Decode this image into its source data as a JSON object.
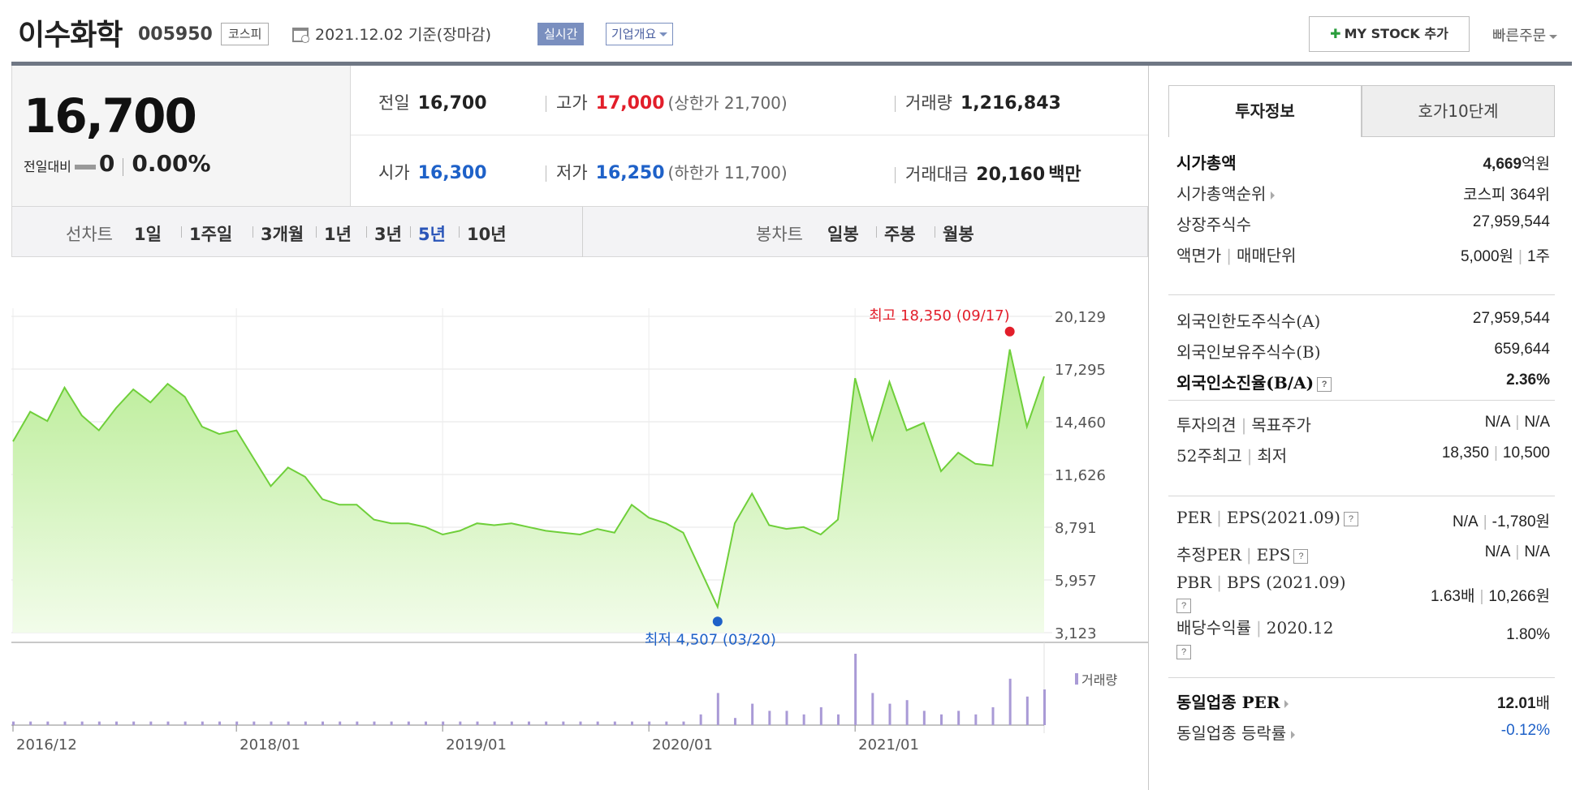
{
  "header": {
    "stock_name": "이수화학",
    "stock_code": "005950",
    "market": "코스피",
    "date_text": "2021.12.02  기준(장마감)",
    "realtime_label": "실시간",
    "company_overview_label": "기업개요",
    "mystock_label": "MY STOCK 추가",
    "quick_order_label": "빠른주문"
  },
  "price": {
    "current": "16,700",
    "change_label": "전일대비",
    "change_value": "0",
    "change_pct": "0.00%"
  },
  "quote": {
    "prev_label": "전일",
    "prev_value": "16,700",
    "high_label": "고가",
    "high_value": "17,000",
    "upper_limit": "(상한가 21,700)",
    "volume_label": "거래량",
    "volume_value": "1,216,843",
    "open_label": "시가",
    "open_value": "16,300",
    "low_label": "저가",
    "low_value": "16,250",
    "lower_limit": "(하한가 11,700)",
    "amount_label": "거래대금",
    "amount_value": "20,160",
    "amount_unit": "백만"
  },
  "period_bar": {
    "line_chart_label": "선차트",
    "line_periods": [
      "1일",
      "1주일",
      "3개월",
      "1년",
      "3년",
      "5년",
      "10년"
    ],
    "active_period": "5년",
    "candle_chart_label": "봉차트",
    "candle_periods": [
      "일봉",
      "주봉",
      "월봉"
    ]
  },
  "chart_data": {
    "type": "area",
    "y_ticks": [
      "20,129",
      "17,295",
      "14,460",
      "11,626",
      "8,791",
      "5,957",
      "3,123"
    ],
    "ylim": [
      3123,
      20129
    ],
    "x_ticks": [
      "2016/12",
      "2018/01",
      "2019/01",
      "2020/01",
      "2021/01"
    ],
    "x_tick_positions": [
      0,
      13,
      25,
      37,
      49
    ],
    "months": 60,
    "series": [
      {
        "values": [
          13400,
          15000,
          14500,
          16300,
          14800,
          14000,
          15200,
          16200,
          15500,
          16500,
          15800,
          14200,
          13800,
          14000,
          12500,
          11000,
          12000,
          11500,
          10300,
          10000,
          10000,
          9200,
          9000,
          9000,
          8800,
          8400,
          8600,
          9000,
          8900,
          9000,
          8800,
          8600,
          8500,
          8400,
          8700,
          8500,
          10000,
          9300,
          9000,
          8500,
          6500,
          4507,
          9000,
          10600,
          8900,
          8700,
          8800,
          8400,
          9200,
          16800,
          13500,
          16600,
          14000,
          14400,
          11800,
          12800,
          12200,
          12100,
          18350,
          14200,
          16900
        ],
        "color": "#6fcf3a"
      }
    ],
    "volume_label": "거래량",
    "volume": [
      1,
      1,
      1,
      1,
      1,
      1,
      1,
      1,
      1,
      1,
      1,
      1,
      1,
      1,
      1,
      1,
      1,
      1,
      1,
      1,
      1,
      1,
      1,
      1,
      1,
      1,
      1,
      1,
      1,
      1,
      1,
      1,
      1,
      1,
      1,
      1,
      1,
      1,
      1,
      1,
      3,
      9,
      2,
      6,
      4,
      4,
      3,
      5,
      3,
      20,
      9,
      6,
      7,
      4,
      3,
      4,
      3,
      5,
      13,
      8,
      10
    ],
    "annotations": {
      "high_text": "최고 18,350 (09/17)",
      "high_index": 58,
      "low_text": "최저 4,507 (03/20)",
      "low_index": 41
    }
  },
  "invest_info": {
    "tab_active": "투자정보",
    "tab_other": "호가10단계",
    "section1": [
      {
        "key": "시가총액",
        "key_bold": true,
        "value": "4,669",
        "unit": "억원",
        "value_bold": true
      },
      {
        "key": "시가총액순위",
        "arrow": true,
        "value": "코스피 364위"
      },
      {
        "key": "상장주식수",
        "value": "27,959,544"
      },
      {
        "key": "액면가",
        "key2": "매매단위",
        "value": "5,000원",
        "value2": "1주"
      }
    ],
    "section2": [
      {
        "key": "외국인한도주식수(A)",
        "value": "27,959,544"
      },
      {
        "key": "외국인보유주식수(B)",
        "value": "659,644"
      },
      {
        "key": "외국인소진율(B/A)",
        "key_bold": true,
        "help": true,
        "value": "2.36%",
        "value_bold": true
      }
    ],
    "section3": [
      {
        "key": "투자의견",
        "key2": "목표주가",
        "value": "N/A",
        "value2": "N/A"
      },
      {
        "key": "52주최고",
        "key2": "최저",
        "value": "18,350",
        "value2": "10,500"
      }
    ],
    "section4": [
      {
        "key": "PER",
        "key2": "EPS(2021.09)",
        "help": true,
        "value": "N/A",
        "value2": "-1,780원"
      },
      {
        "key": "추정PER",
        "key2": "EPS",
        "help": true,
        "value": "N/A",
        "value2": "N/A"
      },
      {
        "key": "PBR",
        "key2": "BPS (2021.09)",
        "help_below": true,
        "value": "1.63배",
        "value2": "10,266원"
      },
      {
        "key": "배당수익률",
        "key2": "2020.12",
        "help_below": true,
        "value": "1.80%"
      }
    ],
    "section5": [
      {
        "key": "동일업종 PER",
        "key_bold": true,
        "arrow": true,
        "value": "12.01",
        "unit": "배",
        "value_bold": true
      },
      {
        "key": "동일업종 등락률",
        "arrow": true,
        "value": "-0.12%",
        "value_blue": true
      }
    ]
  }
}
